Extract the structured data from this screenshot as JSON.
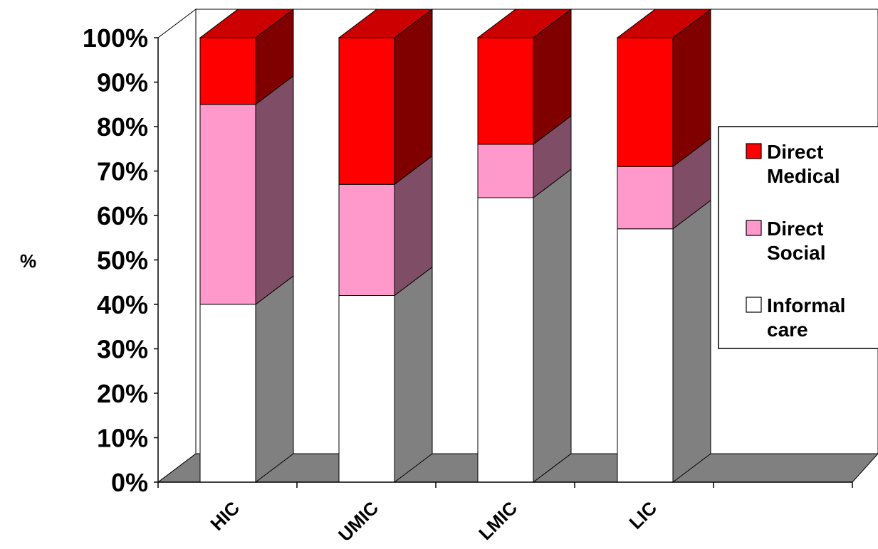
{
  "chart_data": {
    "type": "bar",
    "stacked": true,
    "three_d": true,
    "title": "",
    "xlabel": "",
    "ylabel": "%",
    "ylim": [
      0,
      100
    ],
    "yticks": [
      "0%",
      "10%",
      "20%",
      "30%",
      "40%",
      "50%",
      "60%",
      "70%",
      "80%",
      "90%",
      "100%"
    ],
    "categories": [
      "HIC",
      "UMIC",
      "LMIC",
      "LIC"
    ],
    "series": [
      {
        "name": "Informal care",
        "values": [
          40,
          42,
          64,
          57
        ],
        "color": "#ffffff",
        "legend_lines": [
          "Informal",
          "care"
        ]
      },
      {
        "name": "Direct Social",
        "values": [
          45,
          25,
          12,
          14
        ],
        "color": "#ff99cc",
        "legend_lines": [
          "Direct",
          "Social"
        ]
      },
      {
        "name": "Direct Medical",
        "values": [
          15,
          33,
          24,
          29
        ],
        "color": "#ff0000",
        "legend_lines": [
          "Direct",
          "Medical"
        ]
      }
    ],
    "legend_order": [
      "Direct Medical",
      "Direct Social",
      "Informal care"
    ],
    "legend_position": "right",
    "grid": false,
    "floor_color": "#808080"
  }
}
